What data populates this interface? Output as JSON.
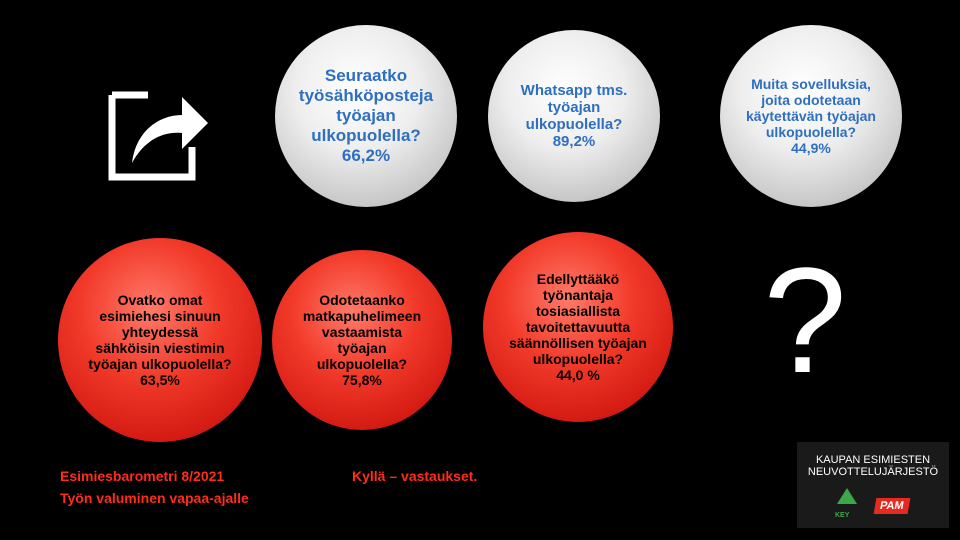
{
  "spheres": [
    {
      "question": "Seuraatko työsähköposteja työajan ulkopuolella?",
      "answer": "66,2%"
    },
    {
      "question": "Whatsapp tms. työajan ulkopuolella?",
      "answer": "89,2%"
    },
    {
      "question": "Muita sovelluksia, joita odotetaan käytettävän työajan ulkopuolella?",
      "answer": "44,9%"
    },
    {
      "question": "Ovatko omat esimiehesi sinuun yhteydessä sähköisin viestimin työajan ulkopuolella?",
      "answer": "63,5%"
    },
    {
      "question": "Odotetaanko matkapuhelimeen vastaamista työajan ulkopuolella?",
      "answer": "75,8%"
    },
    {
      "question": "Edellyttääkö työnantaja tosiasiallista tavoitettavuutta säännöllisen työajan ulkopuolella?",
      "answer": "44,0 %"
    }
  ],
  "question_mark": "?",
  "footer": {
    "source": [
      "Esimiesbarometri 8/2021",
      "Työn valuminen vapaa-ajalle"
    ],
    "note": "Kyllä – vastaukset."
  },
  "logo": {
    "lines": [
      "KAUPAN ESIMIESTEN",
      "NEUVOTTELUJÄRJESTÖ"
    ],
    "key": "KEY",
    "pam": "PAM"
  }
}
